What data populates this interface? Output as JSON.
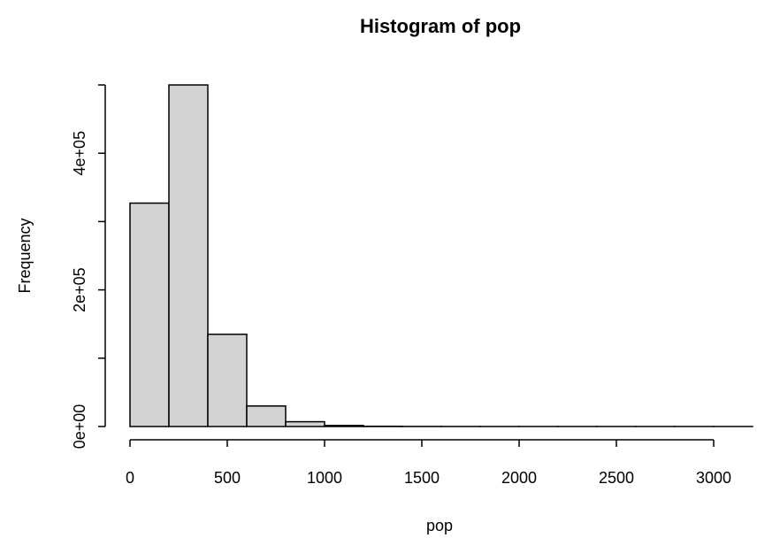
{
  "chart_data": {
    "type": "bar",
    "title": "Histogram of pop",
    "xlabel": "pop",
    "ylabel": "Frequency",
    "bins": [
      {
        "start": 0,
        "end": 200,
        "value": 327000
      },
      {
        "start": 200,
        "end": 400,
        "value": 500000
      },
      {
        "start": 400,
        "end": 600,
        "value": 135000
      },
      {
        "start": 600,
        "end": 800,
        "value": 30000
      },
      {
        "start": 800,
        "end": 1000,
        "value": 7000
      },
      {
        "start": 1000,
        "end": 1200,
        "value": 1500
      },
      {
        "start": 1200,
        "end": 1400,
        "value": 300
      },
      {
        "start": 1400,
        "end": 1600,
        "value": 100
      },
      {
        "start": 1600,
        "end": 1800,
        "value": 50
      },
      {
        "start": 1800,
        "end": 2000,
        "value": 20
      },
      {
        "start": 2000,
        "end": 2200,
        "value": 10
      },
      {
        "start": 2200,
        "end": 2400,
        "value": 5
      },
      {
        "start": 2400,
        "end": 2600,
        "value": 3
      },
      {
        "start": 2600,
        "end": 2800,
        "value": 2
      },
      {
        "start": 2800,
        "end": 3000,
        "value": 1
      },
      {
        "start": 3000,
        "end": 3200,
        "value": 1
      }
    ],
    "xlim": [
      0,
      3200
    ],
    "ylim": [
      0,
      500000
    ],
    "xticks": [
      0,
      500,
      1000,
      1500,
      2000,
      2500,
      3000
    ],
    "xtick_labels": [
      "0",
      "500",
      "1000",
      "1500",
      "2000",
      "2500",
      "3000"
    ],
    "yticks": [
      0,
      100000,
      200000,
      300000,
      400000,
      500000
    ],
    "ytick_labels": [
      "0e+00",
      "",
      "2e+05",
      "",
      "4e+05",
      ""
    ],
    "grid": false,
    "colors": {
      "bar_fill": "#d3d3d3",
      "bar_stroke": "#000000",
      "text": "#000000"
    }
  }
}
